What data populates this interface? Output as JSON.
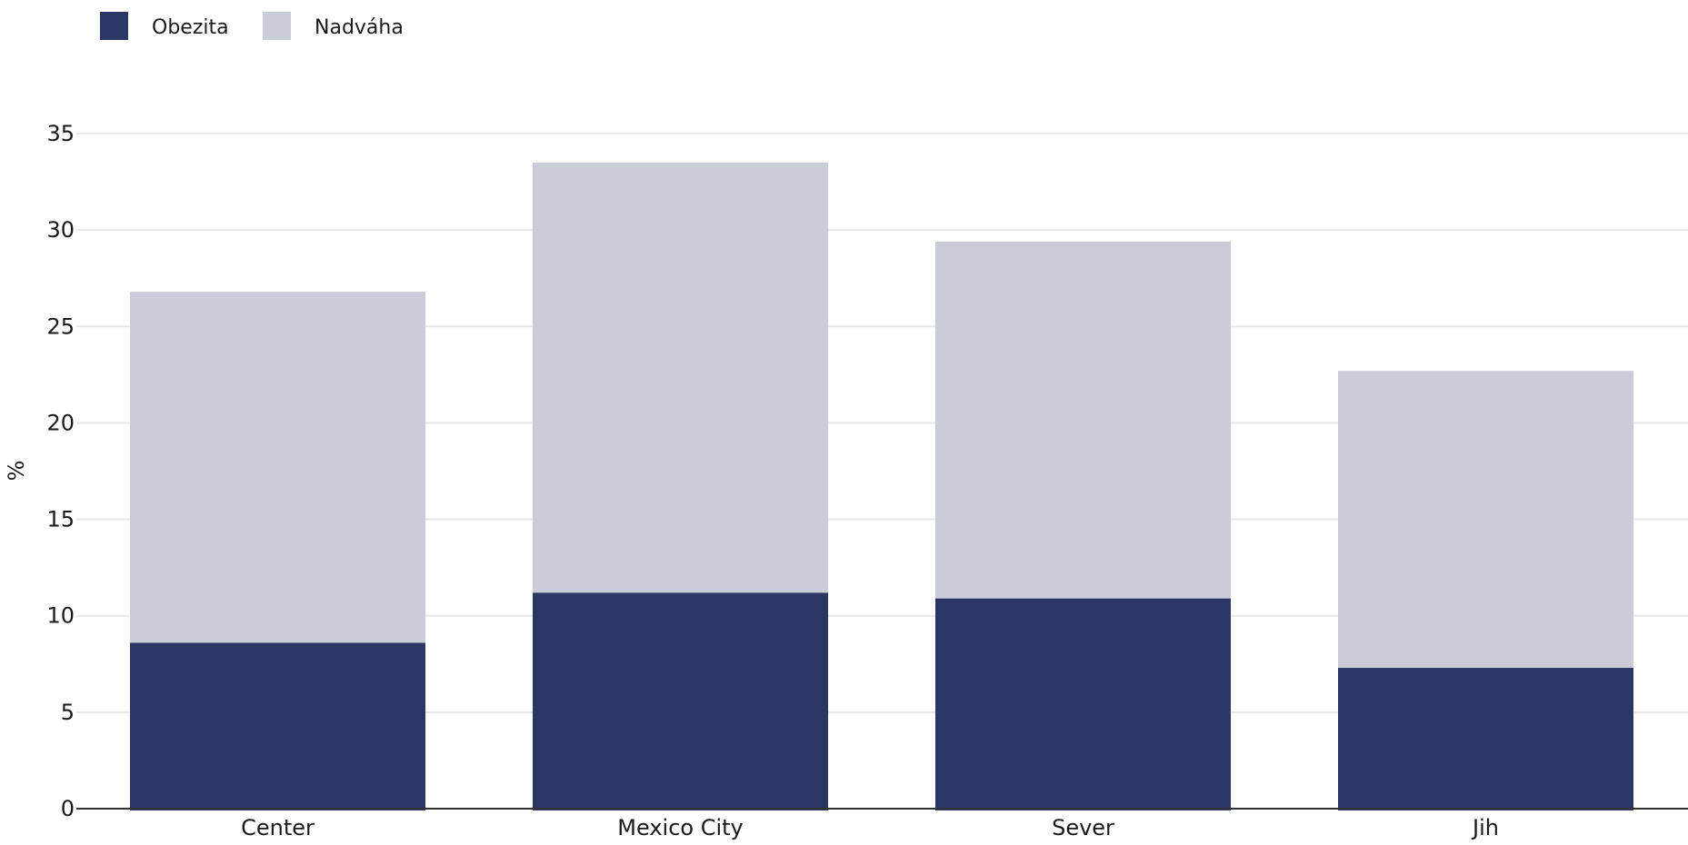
{
  "chart_data": {
    "type": "bar",
    "stacked": true,
    "categories": [
      "Center",
      "Mexico City",
      "Sever",
      "Jih"
    ],
    "series": [
      {
        "name": "Obezita",
        "values": [
          8.6,
          11.2,
          10.9,
          7.3
        ],
        "color": "#2a3663"
      },
      {
        "name": "Nadváha",
        "values": [
          18.2,
          22.3,
          18.5,
          15.4
        ],
        "color": "#caccd8"
      }
    ],
    "title": "",
    "xlabel": "",
    "ylabel": "%",
    "ylim": [
      0,
      35
    ],
    "yticks": [
      0,
      5,
      10,
      15,
      20,
      25,
      30,
      35
    ],
    "grid": true,
    "legend_position": "top-left"
  }
}
